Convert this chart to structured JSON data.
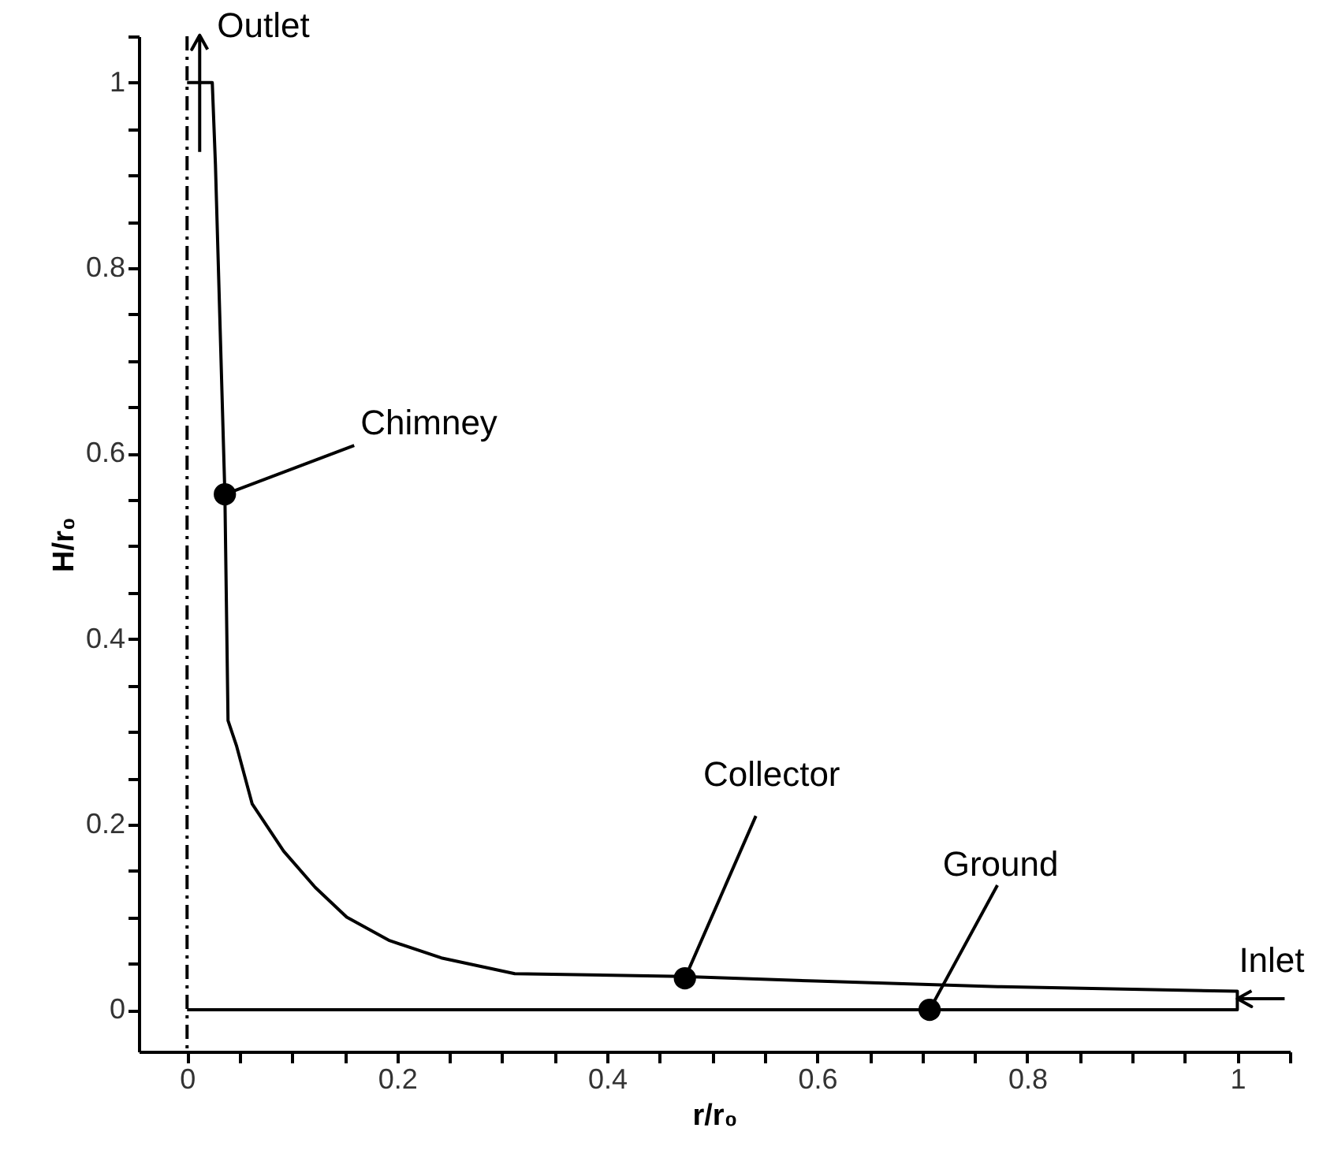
{
  "chart_data": {
    "type": "line",
    "xlabel": "r/r₀",
    "ylabel": "H/r₀",
    "xlim": [
      -0.046,
      1.05
    ],
    "ylim": [
      -0.045,
      1.05
    ],
    "xticks": [
      0,
      {
        "value": 0.05,
        "label": null
      },
      {
        "value": 0.1,
        "label": null
      },
      {
        "value": 0.15,
        "label": null
      },
      0.2,
      {
        "value": 0.25,
        "label": null
      },
      {
        "value": 0.3,
        "label": null
      },
      {
        "value": 0.35,
        "label": null
      },
      0.4,
      {
        "value": 0.45,
        "label": null
      },
      {
        "value": 0.5,
        "label": null
      },
      {
        "value": 0.55,
        "label": null
      },
      0.6,
      {
        "value": 0.65,
        "label": null
      },
      {
        "value": 0.7,
        "label": null
      },
      {
        "value": 0.75,
        "label": null
      },
      0.8,
      {
        "value": 0.85,
        "label": null
      },
      {
        "value": 0.9,
        "label": null
      },
      {
        "value": 0.95,
        "label": null
      },
      1,
      {
        "value": 1.05,
        "label": null
      }
    ],
    "yticks": [
      0,
      {
        "value": 0.05,
        "label": null
      },
      {
        "value": 0.1,
        "label": null
      },
      {
        "value": 0.15,
        "label": null
      },
      0.2,
      {
        "value": 0.25,
        "label": null
      },
      {
        "value": 0.3,
        "label": null
      },
      {
        "value": 0.35,
        "label": null
      },
      0.4,
      {
        "value": 0.45,
        "label": null
      },
      {
        "value": 0.5,
        "label": null
      },
      {
        "value": 0.55,
        "label": null
      },
      0.6,
      {
        "value": 0.65,
        "label": null
      },
      {
        "value": 0.7,
        "label": null
      },
      {
        "value": 0.75,
        "label": null
      },
      0.8,
      {
        "value": 0.85,
        "label": null
      },
      {
        "value": 0.9,
        "label": null
      },
      {
        "value": 0.95,
        "label": null
      },
      1,
      {
        "value": 1.05,
        "label": null
      }
    ],
    "grid": false,
    "series": [
      {
        "color": "#000000",
        "line_style": "solid",
        "x": [
          0,
          0.024,
          0.027,
          0.036,
          0.039,
          0.047,
          0.062,
          0.092,
          0.122,
          0.152,
          0.192,
          0.242,
          0.312,
          0.471,
          0.598,
          0.772,
          1.0,
          1.0,
          0
        ],
        "values": [
          1,
          1,
          0.912,
          0.556,
          0.312,
          0.285,
          0.222,
          0.171,
          0.132,
          0.1,
          0.075,
          0.056,
          0.039,
          0.036,
          0.031,
          0.025,
          0.02,
          0,
          0
        ]
      },
      {
        "type": "scatter",
        "color": "#000000",
        "marker": "circle",
        "x": [
          0.036,
          0.474,
          0.707
        ],
        "values": [
          0.556,
          0.034,
          0
        ]
      }
    ],
    "ref_lines": [
      {
        "axis": "x",
        "value": 0,
        "color": "#000000",
        "line_style": "dashed"
      }
    ],
    "annotations": [
      {
        "text": "Outlet",
        "x": 0.012,
        "y": 1
      },
      {
        "text": "Chimney",
        "x": 0.036,
        "y": 0.556
      },
      {
        "text": "Collector",
        "x": 0.474,
        "y": 0.034
      },
      {
        "text": "Ground",
        "x": 0.707,
        "y": 0
      },
      {
        "text": "Inlet",
        "x": 1.0,
        "y": 0.012
      }
    ]
  }
}
